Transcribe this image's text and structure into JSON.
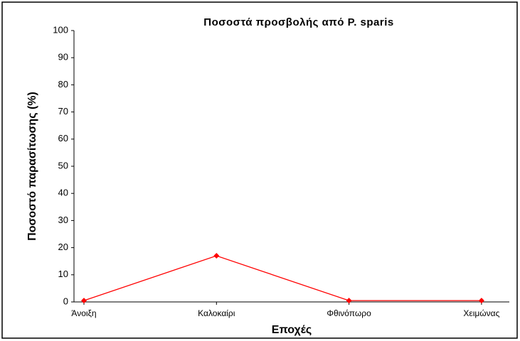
{
  "chart_data": {
    "type": "line",
    "title": "Ποσοστά προσβολής από P. sparis",
    "categories": [
      "Άνοιξη",
      "Καλοκαίρι",
      "Φθινόπωρο",
      "Χειμώνας"
    ],
    "series": [
      {
        "name": "Ποσοστό παρασίτωσης",
        "color": "#ff0000",
        "values": [
          0.5,
          17,
          0.5,
          0.5
        ]
      }
    ],
    "xlabel": "Εποχές",
    "ylabel": "Ποσοστό παρασίτωσης (%)",
    "ylim": [
      0,
      100
    ],
    "yticks": [
      0,
      10,
      20,
      30,
      40,
      50,
      60,
      70,
      80,
      90,
      100
    ],
    "grid": false
  }
}
